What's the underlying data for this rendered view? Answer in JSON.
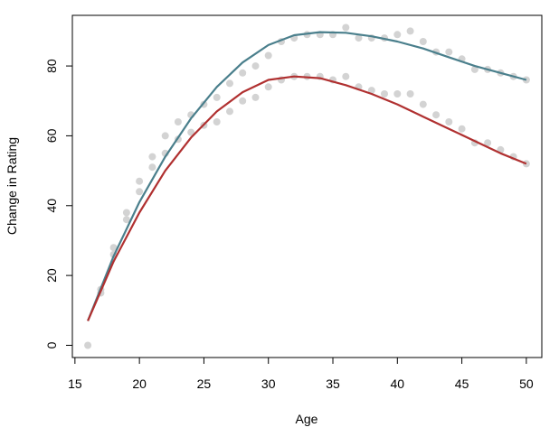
{
  "chart_data": {
    "type": "scatter",
    "title": "",
    "xlabel": "Age",
    "ylabel": "Change in Rating",
    "xlim": [
      14.8,
      51.2
    ],
    "ylim": [
      -3.5,
      94.5
    ],
    "xticks": [
      15,
      20,
      25,
      30,
      35,
      40,
      45,
      50
    ],
    "yticks": [
      0,
      20,
      40,
      60,
      80
    ],
    "grid": false,
    "legend": "none",
    "point_color": "#d3d3d3",
    "points": [
      [
        16,
        0
      ],
      [
        17,
        15
      ],
      [
        17,
        16
      ],
      [
        18,
        26
      ],
      [
        18,
        28
      ],
      [
        19,
        36
      ],
      [
        19,
        38
      ],
      [
        20,
        44
      ],
      [
        20,
        47
      ],
      [
        21,
        51
      ],
      [
        21,
        54
      ],
      [
        22,
        55
      ],
      [
        22,
        60
      ],
      [
        23,
        59
      ],
      [
        23,
        64
      ],
      [
        24,
        61
      ],
      [
        24,
        66
      ],
      [
        25,
        63
      ],
      [
        25,
        69
      ],
      [
        26,
        64
      ],
      [
        26,
        71
      ],
      [
        27,
        67
      ],
      [
        27,
        75
      ],
      [
        28,
        70
      ],
      [
        28,
        78
      ],
      [
        29,
        71
      ],
      [
        29,
        80
      ],
      [
        30,
        74
      ],
      [
        30,
        83
      ],
      [
        31,
        76
      ],
      [
        31,
        87
      ],
      [
        32,
        77
      ],
      [
        32,
        88
      ],
      [
        33,
        77
      ],
      [
        33,
        89
      ],
      [
        34,
        77
      ],
      [
        34,
        89
      ],
      [
        35,
        76
      ],
      [
        35,
        89
      ],
      [
        36,
        77
      ],
      [
        36,
        91
      ],
      [
        37,
        74
      ],
      [
        37,
        88
      ],
      [
        38,
        73
      ],
      [
        38,
        88
      ],
      [
        39,
        72
      ],
      [
        39,
        88
      ],
      [
        40,
        72
      ],
      [
        40,
        89
      ],
      [
        41,
        72
      ],
      [
        41,
        90
      ],
      [
        42,
        69
      ],
      [
        42,
        87
      ],
      [
        43,
        66
      ],
      [
        43,
        84
      ],
      [
        44,
        64
      ],
      [
        44,
        84
      ],
      [
        45,
        62
      ],
      [
        45,
        82
      ],
      [
        46,
        58
      ],
      [
        46,
        79
      ],
      [
        47,
        58
      ],
      [
        47,
        79
      ],
      [
        48,
        56
      ],
      [
        48,
        78
      ],
      [
        49,
        54
      ],
      [
        49,
        77
      ],
      [
        50,
        52
      ],
      [
        50,
        76
      ]
    ],
    "series": [
      {
        "color": "#4a7f8c",
        "x": [
          16,
          18,
          20,
          22,
          24,
          26,
          28,
          30,
          32,
          34,
          36,
          38,
          40,
          42,
          44,
          46,
          48,
          50
        ],
        "y": [
          7,
          25.5,
          41,
          54,
          65,
          74,
          81,
          86,
          88.8,
          89.7,
          89.5,
          88.5,
          87,
          85,
          82.5,
          80,
          78,
          76
        ]
      },
      {
        "color": "#b03030",
        "x": [
          16,
          18,
          20,
          22,
          24,
          26,
          28,
          30,
          32,
          34,
          36,
          38,
          40,
          42,
          44,
          46,
          48,
          50
        ],
        "y": [
          7,
          24,
          38,
          50,
          59.5,
          67,
          72.5,
          76,
          77,
          76.5,
          74.5,
          72,
          69,
          65.5,
          62,
          58.5,
          55,
          52
        ]
      }
    ]
  }
}
